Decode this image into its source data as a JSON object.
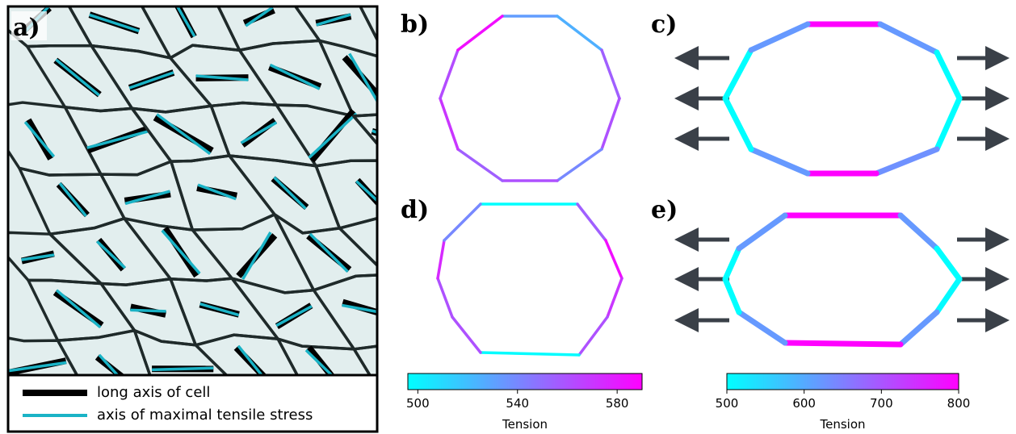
{
  "panels": {
    "a": {
      "label": "a)",
      "legend": [
        "long axis of cell",
        "axis of maximal tensile stress"
      ]
    },
    "b": {
      "label": "b)",
      "tensions": [
        532,
        525,
        555,
        560,
        540,
        560,
        555,
        570,
        562,
        585
      ]
    },
    "c": {
      "label": "c)",
      "tensions": [
        800,
        620,
        500,
        500,
        630,
        800,
        620,
        500,
        500,
        620
      ]
    },
    "d": {
      "label": "d)",
      "tensions": [
        495,
        555,
        585,
        570,
        560,
        497,
        560,
        560,
        575,
        540
      ]
    },
    "e": {
      "label": "e)",
      "tensions": [
        800,
        620,
        500,
        505,
        620,
        800,
        620,
        500,
        500,
        620
      ]
    }
  },
  "colorbars": [
    {
      "lim": [
        496,
        590
      ],
      "ticks": [
        500,
        540,
        580
      ],
      "label": "Tension"
    },
    {
      "lim": [
        500,
        800
      ],
      "ticks": [
        500,
        600,
        700,
        800
      ],
      "label": "Tension"
    }
  ]
}
